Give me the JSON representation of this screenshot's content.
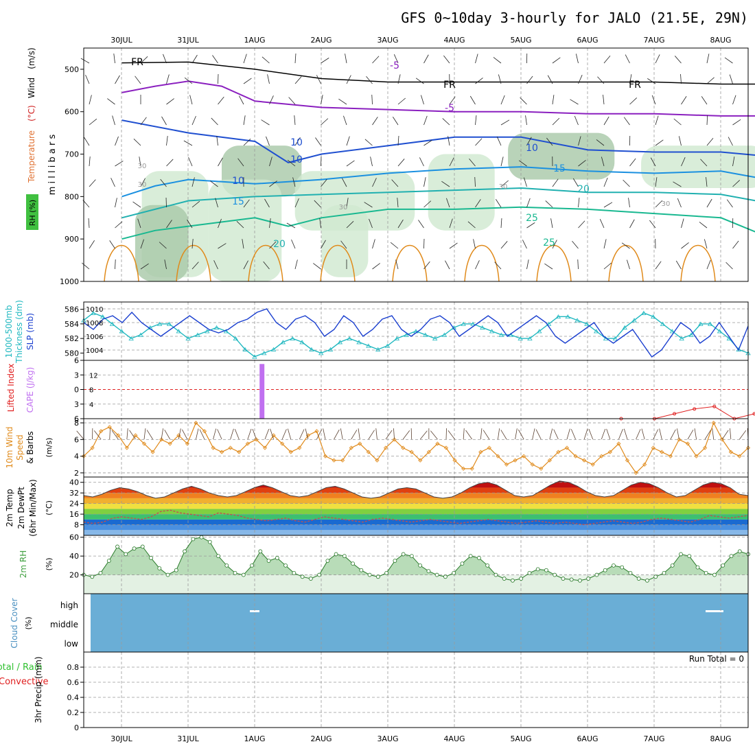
{
  "title": "GFS 0~10day 3-hourly for JALO (21.5E, 29N)",
  "dates": [
    "30JUL",
    "31JUL",
    "1AUG",
    "2AUG",
    "3AUG",
    "4AUG",
    "5AUG",
    "6AUG",
    "7AUG",
    "8AUG"
  ],
  "colors": {
    "grid": "#999999",
    "frame": "#000000",
    "rh_fill": "#cfe8cf",
    "rh_fill2": "#a8c8a8",
    "temp_cold": "#1f3fcf",
    "freezing": "#000000",
    "minus5": "#8a1fbf",
    "wind_orange": "#e08a1a",
    "thickness": "#20b8c0",
    "slp": "#1a3fcf",
    "cape": "#c070f0",
    "lifted": "#e02020",
    "rh2m": "#40a040",
    "cloud": "#6aaed6",
    "precip_total": "#30c030",
    "precip_conv": "#e02020"
  },
  "chart_data": [
    {
      "type": "heatmap",
      "panel": "upper-air",
      "ylabel": "m i l l i b a r s",
      "left_labels": [
        "RH (%)",
        "Temperature",
        "(°C)",
        "Wind",
        "(m/s)"
      ],
      "yticks": [
        500,
        600,
        700,
        800,
        900,
        1000
      ],
      "ylim": [
        450,
        1000
      ],
      "contour_labels": [
        "FR",
        "FR",
        "FR",
        "-5",
        "-5",
        "10",
        "10",
        "10",
        "15",
        "15",
        "20",
        "20",
        "25",
        "25",
        "30",
        "30",
        "30",
        "30",
        "30",
        "10"
      ],
      "isotherms": [
        {
          "label": "FR",
          "x": [
            0,
            1,
            2,
            3,
            4,
            5,
            6,
            7,
            8,
            9,
            9.7
          ],
          "p": [
            485,
            483,
            500,
            522,
            530,
            530,
            530,
            530,
            530,
            535,
            535
          ]
        },
        {
          "label": "-5",
          "x": [
            0,
            0.5,
            1,
            1.5,
            2,
            3,
            4,
            5,
            6,
            7,
            8,
            9,
            9.7
          ],
          "p": [
            555,
            540,
            528,
            540,
            575,
            590,
            595,
            600,
            600,
            605,
            605,
            610,
            610
          ]
        },
        {
          "label": "10",
          "x": [
            0,
            1,
            2,
            2.5,
            3,
            4,
            5,
            6,
            7,
            8,
            9,
            9.7
          ],
          "p": [
            620,
            650,
            670,
            720,
            700,
            680,
            660,
            660,
            690,
            695,
            695,
            705
          ]
        },
        {
          "label": "15",
          "x": [
            0,
            0.5,
            1,
            2,
            3,
            4,
            5,
            6,
            7,
            8,
            9,
            9.7
          ],
          "p": [
            800,
            775,
            760,
            770,
            760,
            745,
            735,
            730,
            740,
            745,
            740,
            760
          ]
        },
        {
          "label": "20",
          "x": [
            0,
            0.5,
            1,
            2,
            3,
            4,
            5,
            6,
            7,
            8,
            9,
            9.7
          ],
          "p": [
            850,
            830,
            810,
            800,
            795,
            790,
            785,
            780,
            790,
            790,
            795,
            815
          ]
        },
        {
          "label": "25",
          "x": [
            0,
            0.5,
            1,
            2,
            2.5,
            3,
            4,
            5,
            6,
            7,
            8,
            9,
            9.7
          ],
          "p": [
            900,
            880,
            870,
            850,
            870,
            850,
            830,
            830,
            825,
            830,
            840,
            850,
            895
          ]
        }
      ]
    },
    {
      "type": "line",
      "panel": "thickness-slp",
      "left_labels": [
        "1000-500mb",
        "Thickness (dm)",
        "SLP (mb)"
      ],
      "yticks_left": [
        580,
        582,
        584,
        586
      ],
      "yticks_right": [
        1004,
        1006,
        1008,
        1010
      ],
      "series": [
        {
          "name": "Thickness",
          "axis": "left",
          "values": [
            584.5,
            585.5,
            585,
            584,
            583,
            582,
            582.5,
            583.5,
            584,
            584,
            583,
            582,
            582.5,
            583,
            583.5,
            583,
            582,
            580.5,
            579.5,
            580,
            580.5,
            581.5,
            582,
            581.5,
            580.5,
            580,
            580.5,
            581.5,
            582,
            581.5,
            581,
            580.5,
            581,
            582,
            582.5,
            583,
            582.5,
            582,
            582.5,
            583.5,
            584,
            584,
            583.5,
            583,
            582.5,
            582.5,
            582,
            582,
            583,
            584,
            585,
            585,
            584.5,
            584,
            583,
            582,
            582,
            583.5,
            584.5,
            585.5,
            585,
            584,
            583,
            582,
            582.5,
            584,
            584,
            583,
            582,
            580.5,
            580
          ]
        },
        {
          "name": "SLP",
          "axis": "right",
          "values": [
            1008,
            1007,
            1008.5,
            1009,
            1008,
            1009.5,
            1008,
            1007,
            1006,
            1007,
            1008,
            1009,
            1008,
            1007,
            1006.5,
            1007,
            1008,
            1008.5,
            1009.5,
            1010,
            1008,
            1007,
            1008.5,
            1009,
            1008,
            1006,
            1007,
            1009,
            1008,
            1006,
            1007,
            1008.5,
            1009,
            1007,
            1006,
            1007,
            1008.5,
            1009,
            1008,
            1006,
            1007,
            1008,
            1009,
            1008,
            1006,
            1007,
            1008,
            1009,
            1008,
            1006,
            1005,
            1006,
            1007,
            1008,
            1006,
            1005,
            1006,
            1007,
            1005,
            1003,
            1004,
            1006,
            1008,
            1007,
            1005,
            1006,
            1008,
            1006,
            1004,
            1007.5
          ]
        }
      ]
    },
    {
      "type": "bar",
      "panel": "cape-lifted",
      "left_labels": [
        "Lifted Index",
        "CAPE (J/kg)"
      ],
      "yticks_left": [
        -6,
        -3,
        0,
        3,
        6
      ],
      "yticks_right": [
        4,
        8,
        12
      ],
      "cape_bar": {
        "x": 2.1,
        "value": 15
      },
      "lifted_index": {
        "x": [
          7.5,
          8,
          8.3,
          8.6,
          8.9,
          9.2,
          9.5,
          9.7
        ],
        "values": [
          -6,
          -6,
          -5,
          -4,
          -3.5,
          -6,
          -5,
          -4
        ]
      }
    },
    {
      "type": "line",
      "panel": "wind10m",
      "left_labels": [
        "10m Wind",
        "Speed",
        "& Barbs",
        "(m/s)"
      ],
      "yticks": [
        2,
        4,
        6,
        8
      ],
      "ylim": [
        1.5,
        8.5
      ],
      "values": [
        4,
        5,
        7,
        7.5,
        6.5,
        5,
        6.5,
        5.5,
        4.5,
        6,
        5.5,
        6.5,
        5.5,
        8,
        7,
        5,
        4.5,
        5,
        4.5,
        5.5,
        6,
        5,
        6.5,
        5.5,
        4.5,
        5,
        6.5,
        7,
        4,
        3.5,
        3.5,
        5,
        5.5,
        4.5,
        3.5,
        5,
        6,
        5,
        4.5,
        3.5,
        4.5,
        5.5,
        5,
        3.5,
        2.5,
        2.5,
        4.5,
        5,
        4,
        3,
        3.5,
        4,
        3,
        2.5,
        3.5,
        4.5,
        5,
        4,
        3.5,
        3,
        4,
        4.5,
        5.5,
        3.5,
        2,
        3,
        5,
        4.5,
        4,
        6,
        5.5,
        4,
        5,
        8,
        6,
        4.5,
        4,
        5
      ]
    },
    {
      "type": "area",
      "panel": "temp2m",
      "left_labels": [
        "2m Temp",
        "2m DewPt",
        "(6hr Min/Max)",
        "(°C)"
      ],
      "yticks": [
        8,
        16,
        24,
        32,
        40
      ],
      "ylim": [
        0,
        44
      ],
      "temperature": [
        30,
        29,
        31,
        34,
        36,
        35,
        33,
        30,
        28,
        29,
        32,
        35,
        37,
        35,
        32,
        30,
        29,
        30,
        33,
        36,
        38,
        36,
        33,
        30,
        29,
        30,
        33,
        36,
        37,
        35,
        32,
        29,
        28,
        29,
        32,
        35,
        36,
        35,
        32,
        29,
        28,
        29,
        32,
        36,
        39,
        40,
        38,
        34,
        30,
        29,
        30,
        34,
        38,
        41,
        40,
        37,
        33,
        30,
        29,
        30,
        34,
        38,
        40,
        39,
        36,
        32,
        29,
        30,
        34,
        38,
        40,
        39,
        36,
        31,
        30
      ],
      "dewpoint": [
        10,
        9,
        10,
        13,
        14,
        13,
        12,
        14,
        18,
        19,
        17,
        16,
        15,
        14,
        17,
        16,
        15,
        13,
        12,
        11,
        12,
        13,
        11,
        10,
        12,
        14,
        13,
        12,
        11,
        10,
        12,
        13,
        12,
        11,
        10,
        11,
        12,
        11,
        10,
        9,
        10,
        11,
        12,
        11,
        10,
        9,
        10,
        11,
        10,
        9,
        10,
        9,
        8,
        9,
        10,
        11,
        10,
        9,
        10,
        12,
        13,
        12,
        11,
        10,
        12,
        15,
        14,
        13,
        14,
        15
      ]
    },
    {
      "type": "area",
      "panel": "rh2m",
      "left_labels": [
        "2m RH",
        "(%)"
      ],
      "yticks": [
        20,
        40,
        60
      ],
      "ylim": [
        0,
        62
      ],
      "values": [
        20,
        18,
        22,
        35,
        50,
        42,
        48,
        50,
        38,
        27,
        20,
        25,
        45,
        58,
        60,
        55,
        40,
        30,
        22,
        20,
        30,
        45,
        35,
        38,
        30,
        22,
        18,
        16,
        20,
        35,
        42,
        40,
        32,
        25,
        20,
        18,
        22,
        35,
        42,
        40,
        30,
        24,
        20,
        18,
        22,
        32,
        40,
        38,
        30,
        20,
        16,
        14,
        16,
        22,
        26,
        25,
        20,
        16,
        15,
        14,
        16,
        20,
        25,
        30,
        28,
        22,
        16,
        14,
        18,
        22,
        30,
        42,
        40,
        28,
        22,
        20,
        30,
        40,
        45,
        42
      ]
    },
    {
      "type": "area",
      "panel": "cloud",
      "left_labels": [
        "Cloud Cover",
        "(%)"
      ],
      "yticks_text": [
        "high",
        "middle",
        "low"
      ],
      "coverage": "full"
    },
    {
      "type": "bar",
      "panel": "precip",
      "left_labels": [
        "Total / Rain",
        "Convective",
        "3hr Precip (mm)"
      ],
      "yticks": [
        0,
        0.2,
        0.4,
        0.6,
        0.8
      ],
      "ylim": [
        0,
        1
      ],
      "run_total": "Run Total = 0",
      "values": []
    }
  ]
}
